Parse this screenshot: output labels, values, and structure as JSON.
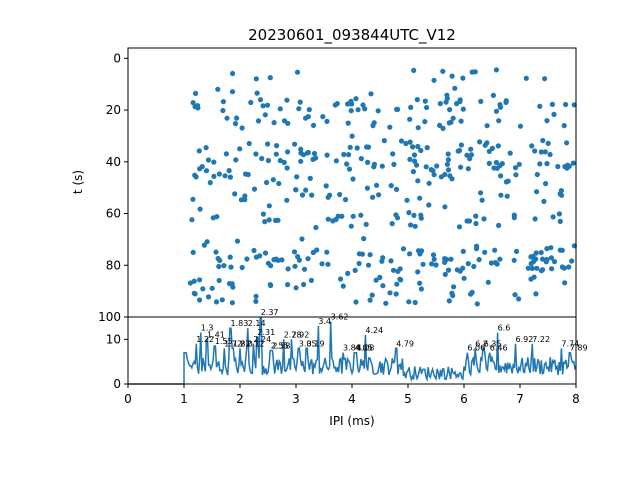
{
  "chart_data": [
    {
      "type": "scatter",
      "title": "20230601_093844UTC_V12",
      "xlabel": "",
      "ylabel": "t (s)",
      "xlim": [
        0,
        8
      ],
      "ylim": [
        100,
        -4
      ],
      "y_inverted": true,
      "xticks": [],
      "yticks": [
        "0",
        "20",
        "40",
        "60",
        "80",
        "100"
      ],
      "ytick_values": [
        0,
        20,
        40,
        60,
        80,
        100
      ],
      "color": "#1f77b4",
      "x_range_of_points": [
        1.0,
        8.0
      ],
      "time_clusters": [
        {
          "center": 6,
          "density": "sparse"
        },
        {
          "center": 18,
          "density": "dense"
        },
        {
          "center": 25,
          "density": "medium"
        },
        {
          "center": 35,
          "density": "dense"
        },
        {
          "center": 41,
          "density": "dense"
        },
        {
          "center": 47,
          "density": "medium"
        },
        {
          "center": 53,
          "density": "medium"
        },
        {
          "center": 63,
          "density": "medium"
        },
        {
          "center": 76,
          "density": "dense"
        },
        {
          "center": 80,
          "density": "dense"
        },
        {
          "center": 87,
          "density": "medium"
        },
        {
          "center": 93,
          "density": "medium"
        }
      ]
    },
    {
      "type": "line",
      "title": "",
      "xlabel": "IPI (ms)",
      "ylabel": "",
      "xlim": [
        0,
        8
      ],
      "ylim": [
        0,
        15
      ],
      "xticks": [
        "0",
        "1",
        "2",
        "3",
        "4",
        "5",
        "6",
        "7",
        "8"
      ],
      "xtick_values": [
        0,
        1,
        2,
        3,
        4,
        5,
        6,
        7,
        8
      ],
      "yticks": [
        "0",
        "10"
      ],
      "ytick_values": [
        0,
        10
      ],
      "color": "#1f77b4",
      "baseline": {
        "x": [
          0,
          1.0
        ],
        "y": 0
      },
      "peaks": [
        {
          "x": 1.3,
          "y": 11.5,
          "label": "1.3"
        },
        {
          "x": 1.22,
          "y": 9.0,
          "label": "1.22"
        },
        {
          "x": 1.41,
          "y": 10.0,
          "label": "1.41"
        },
        {
          "x": 1.55,
          "y": 8.5,
          "label": "1.55"
        },
        {
          "x": 1.83,
          "y": 12.5,
          "label": "1.83"
        },
        {
          "x": 2.14,
          "y": 12.5,
          "label": "2.14"
        },
        {
          "x": 1.72,
          "y": 8.0,
          "label": "1.72"
        },
        {
          "x": 1.87,
          "y": 8.0,
          "label": "1.87"
        },
        {
          "x": 2.0,
          "y": 8.0,
          "label": "2.0"
        },
        {
          "x": 2.12,
          "y": 8.0,
          "label": "2.12"
        },
        {
          "x": 2.37,
          "y": 15.0,
          "label": "2.37"
        },
        {
          "x": 2.31,
          "y": 10.5,
          "label": "2.31"
        },
        {
          "x": 2.24,
          "y": 9.0,
          "label": "2.24"
        },
        {
          "x": 2.55,
          "y": 7.5,
          "label": "2.55"
        },
        {
          "x": 2.58,
          "y": 7.5,
          "label": "2.58"
        },
        {
          "x": 2.78,
          "y": 10.0,
          "label": "2.78"
        },
        {
          "x": 2.92,
          "y": 10.0,
          "label": "2.92"
        },
        {
          "x": 3.05,
          "y": 8.0,
          "label": "3.05"
        },
        {
          "x": 3.19,
          "y": 8.0,
          "label": "3.19"
        },
        {
          "x": 3.4,
          "y": 13.0,
          "label": "3.4"
        },
        {
          "x": 3.62,
          "y": 14.0,
          "label": "3.62"
        },
        {
          "x": 3.84,
          "y": 7.0,
          "label": "3.84"
        },
        {
          "x": 4.05,
          "y": 7.0,
          "label": "4.05"
        },
        {
          "x": 4.08,
          "y": 7.0,
          "label": "4.08"
        },
        {
          "x": 4.24,
          "y": 11.0,
          "label": "4.24"
        },
        {
          "x": 4.79,
          "y": 8.0,
          "label": "4.79"
        },
        {
          "x": 6.06,
          "y": 7.0,
          "label": "6.06"
        },
        {
          "x": 6.2,
          "y": 8.0,
          "label": "6.2"
        },
        {
          "x": 6.35,
          "y": 8.0,
          "label": "6.35"
        },
        {
          "x": 6.46,
          "y": 7.0,
          "label": "6.46"
        },
        {
          "x": 6.6,
          "y": 11.5,
          "label": "6.6"
        },
        {
          "x": 6.92,
          "y": 9.0,
          "label": "6.92"
        },
        {
          "x": 7.22,
          "y": 9.0,
          "label": "7.22"
        },
        {
          "x": 7.74,
          "y": 8.0,
          "label": "7.74"
        },
        {
          "x": 7.89,
          "y": 7.0,
          "label": "7.89"
        }
      ]
    }
  ]
}
